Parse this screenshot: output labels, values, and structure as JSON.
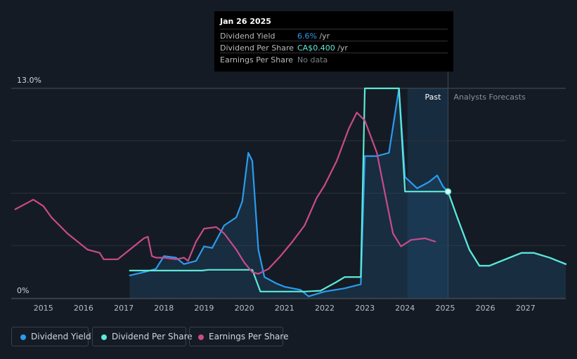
{
  "tooltip": {
    "date": "Jan 26 2025",
    "rows": [
      {
        "label": "Dividend Yield",
        "value": "6.6%",
        "unit": " /yr",
        "color": "#2a9cf0"
      },
      {
        "label": "Dividend Per Share",
        "value": "CA$0.400",
        "unit": " /yr",
        "color": "#5de8d8"
      },
      {
        "label": "Earnings Per Share",
        "value": "No data",
        "unit": "",
        "color": "#7a8088"
      }
    ]
  },
  "legend": {
    "items": [
      {
        "label": "Dividend Yield",
        "color": "#2a9cf0"
      },
      {
        "label": "Dividend Per Share",
        "color": "#5de8d8"
      },
      {
        "label": "Earnings Per Share",
        "color": "#c84b8a"
      }
    ]
  },
  "chart_data": {
    "type": "line",
    "title": "",
    "xlabel": "",
    "ylabel": "",
    "ylim": [
      0,
      13.0
    ],
    "xlim": [
      2014.2,
      2028.0
    ],
    "y_tick_labels": [
      "13.0%",
      "0%"
    ],
    "x_tick_labels": [
      "2015",
      "2016",
      "2017",
      "2018",
      "2019",
      "2020",
      "2021",
      "2022",
      "2023",
      "2024",
      "2025",
      "2026",
      "2027"
    ],
    "x_ticks": [
      2015,
      2016,
      2017,
      2018,
      2019,
      2020,
      2021,
      2022,
      2023,
      2024,
      2025,
      2026,
      2027
    ],
    "past_label": "Past",
    "forecast_label": "Analysts Forecasts",
    "past_divider_x": 2025.07,
    "highlight_start_x": 2024.06,
    "series": [
      {
        "name": "Dividend Yield",
        "color": "#2a9cf0",
        "filled": true,
        "points": [
          [
            2017.15,
            1.4
          ],
          [
            2017.5,
            1.6
          ],
          [
            2017.8,
            1.8
          ],
          [
            2018.0,
            2.6
          ],
          [
            2018.3,
            2.5
          ],
          [
            2018.5,
            2.1
          ],
          [
            2018.8,
            2.3
          ],
          [
            2019.0,
            3.2
          ],
          [
            2019.2,
            3.1
          ],
          [
            2019.5,
            4.5
          ],
          [
            2019.8,
            5.0
          ],
          [
            2019.95,
            6.0
          ],
          [
            2020.1,
            9.0
          ],
          [
            2020.2,
            8.5
          ],
          [
            2020.35,
            3.0
          ],
          [
            2020.5,
            1.3
          ],
          [
            2020.8,
            0.9
          ],
          [
            2021.0,
            0.7
          ],
          [
            2021.2,
            0.6
          ],
          [
            2021.4,
            0.5
          ],
          [
            2021.6,
            0.1
          ],
          [
            2022.0,
            0.4
          ],
          [
            2022.5,
            0.6
          ],
          [
            2022.9,
            0.85
          ],
          [
            2023.0,
            8.8
          ],
          [
            2023.3,
            8.8
          ],
          [
            2023.6,
            9.0
          ],
          [
            2023.85,
            13.0
          ],
          [
            2024.0,
            7.5
          ],
          [
            2024.3,
            6.8
          ],
          [
            2024.6,
            7.2
          ],
          [
            2024.8,
            7.6
          ],
          [
            2024.95,
            6.9
          ],
          [
            2025.07,
            6.6
          ],
          [
            2025.3,
            5.0
          ],
          [
            2025.6,
            3.0
          ],
          [
            2025.85,
            2.0
          ],
          [
            2026.1,
            2.0
          ],
          [
            2026.5,
            2.4
          ],
          [
            2026.9,
            2.8
          ],
          [
            2027.2,
            2.8
          ],
          [
            2027.6,
            2.5
          ],
          [
            2028.0,
            2.1
          ]
        ]
      },
      {
        "name": "Dividend Per Share",
        "color": "#5de8d8",
        "filled": false,
        "points": [
          [
            2017.15,
            1.7
          ],
          [
            2018.95,
            1.7
          ],
          [
            2019.1,
            1.75
          ],
          [
            2020.2,
            1.75
          ],
          [
            2020.4,
            0.4
          ],
          [
            2020.6,
            0.4
          ],
          [
            2021.5,
            0.4
          ],
          [
            2021.9,
            0.45
          ],
          [
            2022.3,
            1.0
          ],
          [
            2022.5,
            1.3
          ],
          [
            2022.9,
            1.3
          ],
          [
            2023.0,
            13.0
          ],
          [
            2023.85,
            13.0
          ],
          [
            2024.0,
            6.6
          ],
          [
            2025.07,
            6.6
          ],
          [
            2025.3,
            5.0
          ],
          [
            2025.6,
            3.0
          ],
          [
            2025.85,
            2.0
          ],
          [
            2026.1,
            2.0
          ],
          [
            2026.5,
            2.4
          ],
          [
            2026.9,
            2.8
          ],
          [
            2027.2,
            2.8
          ],
          [
            2027.6,
            2.5
          ],
          [
            2028.0,
            2.1
          ]
        ]
      },
      {
        "name": "Earnings Per Share",
        "color": "#c84b8a",
        "filled": false,
        "points": [
          [
            2014.3,
            5.5
          ],
          [
            2014.6,
            5.9
          ],
          [
            2014.75,
            6.1
          ],
          [
            2015.0,
            5.7
          ],
          [
            2015.2,
            5.0
          ],
          [
            2015.6,
            4.0
          ],
          [
            2015.9,
            3.4
          ],
          [
            2016.1,
            3.0
          ],
          [
            2016.4,
            2.8
          ],
          [
            2016.5,
            2.4
          ],
          [
            2016.85,
            2.4
          ],
          [
            2017.15,
            3.0
          ],
          [
            2017.5,
            3.7
          ],
          [
            2017.6,
            3.8
          ],
          [
            2017.7,
            2.6
          ],
          [
            2017.8,
            2.5
          ],
          [
            2018.0,
            2.5
          ],
          [
            2018.3,
            2.4
          ],
          [
            2018.5,
            2.5
          ],
          [
            2018.6,
            2.3
          ],
          [
            2018.8,
            3.5
          ],
          [
            2019.0,
            4.3
          ],
          [
            2019.3,
            4.4
          ],
          [
            2019.5,
            4.0
          ],
          [
            2019.8,
            3.0
          ],
          [
            2020.0,
            2.2
          ],
          [
            2020.2,
            1.6
          ],
          [
            2020.35,
            1.5
          ],
          [
            2020.6,
            1.8
          ],
          [
            2020.9,
            2.6
          ],
          [
            2021.2,
            3.5
          ],
          [
            2021.5,
            4.5
          ],
          [
            2021.8,
            6.2
          ],
          [
            2022.0,
            7.0
          ],
          [
            2022.3,
            8.5
          ],
          [
            2022.6,
            10.5
          ],
          [
            2022.8,
            11.5
          ],
          [
            2023.0,
            11.0
          ],
          [
            2023.3,
            9.0
          ],
          [
            2023.5,
            6.5
          ],
          [
            2023.7,
            4.0
          ],
          [
            2023.9,
            3.2
          ],
          [
            2024.15,
            3.6
          ],
          [
            2024.5,
            3.7
          ],
          [
            2024.75,
            3.5
          ]
        ]
      }
    ],
    "marker": {
      "x": 2025.07,
      "y": 6.6,
      "series": "Dividend Per Share"
    }
  }
}
